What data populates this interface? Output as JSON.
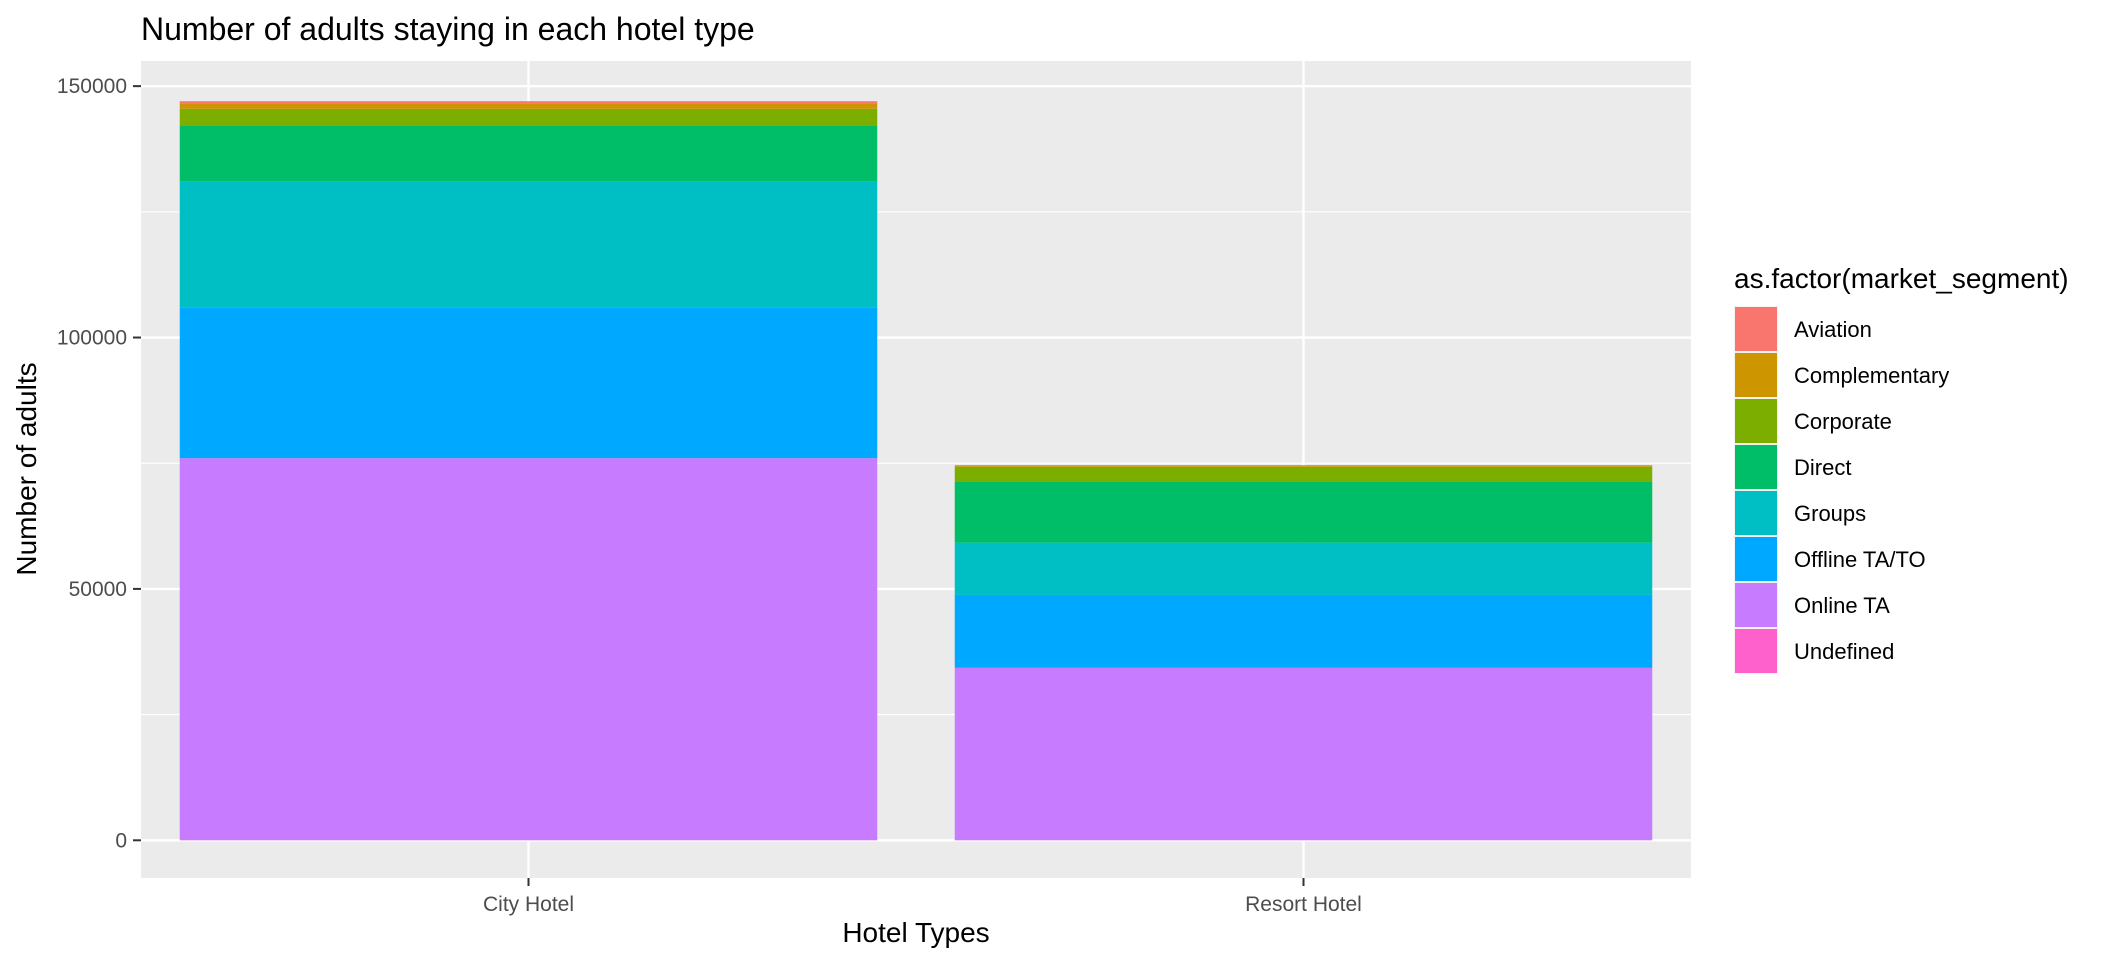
{
  "chart_data": {
    "type": "bar",
    "stacked": true,
    "title": "Number of adults staying in each hotel type",
    "xlabel": "Hotel Types",
    "ylabel": "Number of adults",
    "categories": [
      "City Hotel",
      "Resort Hotel"
    ],
    "ylim": [
      -7500,
      155000
    ],
    "yticks": [
      0,
      50000,
      100000,
      150000
    ],
    "ytick_labels": [
      "0",
      "50000",
      "100000",
      "150000"
    ],
    "grid": true,
    "legend_position": "right",
    "legend_title": "as.factor(market_segment)",
    "series": [
      {
        "name": "Aviation",
        "color": "#F8766D",
        "values": [
          400,
          0
        ]
      },
      {
        "name": "Complementary",
        "color": "#CD9600",
        "values": [
          1100,
          300
        ]
      },
      {
        "name": "Corporate",
        "color": "#7CAE00",
        "values": [
          3300,
          2900
        ]
      },
      {
        "name": "Direct",
        "color": "#00BE67",
        "values": [
          11200,
          12200
        ]
      },
      {
        "name": "Groups",
        "color": "#00BFC4",
        "values": [
          25000,
          10400
        ]
      },
      {
        "name": "Offline TA/TO",
        "color": "#00A9FF",
        "values": [
          30000,
          14500
        ]
      },
      {
        "name": "Online TA",
        "color": "#C77CFF",
        "values": [
          76000,
          34300
        ]
      },
      {
        "name": "Undefined",
        "color": "#FF61CC",
        "values": [
          0,
          0
        ]
      }
    ]
  }
}
